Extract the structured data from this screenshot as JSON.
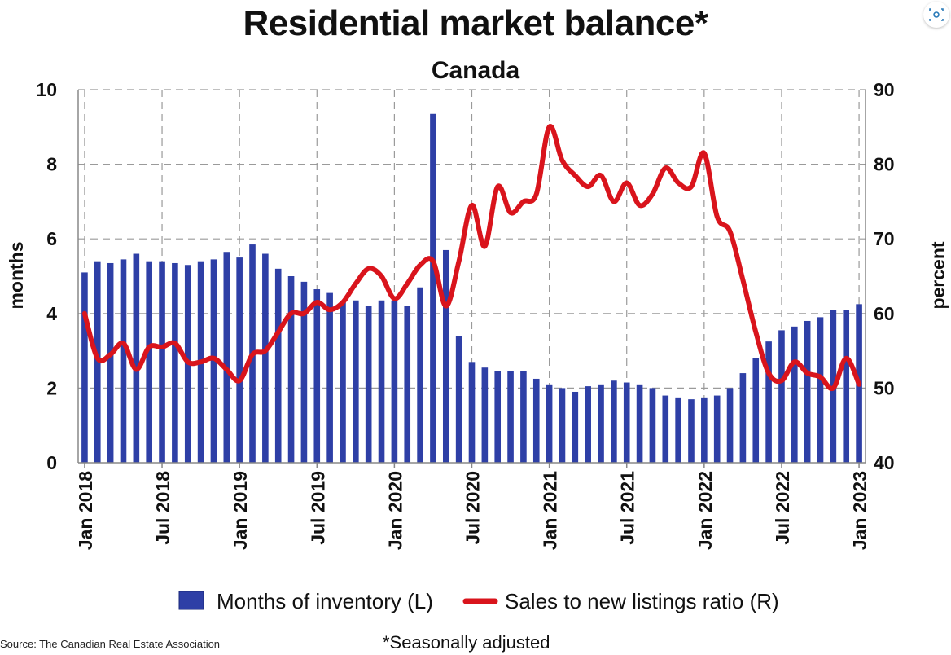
{
  "title": "Residential market balance*",
  "subtitle": "Canada",
  "source": "Source: The Canadian Real Estate Association",
  "footnote": "*Seasonally adjusted",
  "icons": {
    "corner": "lens-icon"
  },
  "colors": {
    "bar": "#2e3fa6",
    "line": "#d9141c",
    "grid": "#9a9a9a"
  },
  "chart_data": {
    "type": "bar+line",
    "title": "Residential market balance*",
    "subtitle": "Canada",
    "ylabel": "months",
    "y2label": "percent",
    "ylim": [
      0,
      10
    ],
    "y2lim": [
      40,
      90
    ],
    "yticks": [
      0,
      2,
      4,
      6,
      8,
      10
    ],
    "y2ticks": [
      40,
      50,
      60,
      70,
      80,
      90
    ],
    "grid": true,
    "legend_position": "bottom",
    "categories": [
      "Jan 2018",
      "Feb 2018",
      "Mar 2018",
      "Apr 2018",
      "May 2018",
      "Jun 2018",
      "Jul 2018",
      "Aug 2018",
      "Sep 2018",
      "Oct 2018",
      "Nov 2018",
      "Dec 2018",
      "Jan 2019",
      "Feb 2019",
      "Mar 2019",
      "Apr 2019",
      "May 2019",
      "Jun 2019",
      "Jul 2019",
      "Aug 2019",
      "Sep 2019",
      "Oct 2019",
      "Nov 2019",
      "Dec 2019",
      "Jan 2020",
      "Feb 2020",
      "Mar 2020",
      "Apr 2020",
      "May 2020",
      "Jun 2020",
      "Jul 2020",
      "Aug 2020",
      "Sep 2020",
      "Oct 2020",
      "Nov 2020",
      "Dec 2020",
      "Jan 2021",
      "Feb 2021",
      "Mar 2021",
      "Apr 2021",
      "May 2021",
      "Jun 2021",
      "Jul 2021",
      "Aug 2021",
      "Sep 2021",
      "Oct 2021",
      "Nov 2021",
      "Dec 2021",
      "Jan 2022",
      "Feb 2022",
      "Mar 2022",
      "Apr 2022",
      "May 2022",
      "Jun 2022",
      "Jul 2022",
      "Aug 2022",
      "Sep 2022",
      "Oct 2022",
      "Nov 2022",
      "Dec 2022",
      "Jan 2023"
    ],
    "xtick_labels": [
      "Jan 2018",
      "Jul 2018",
      "Jan 2019",
      "Jul 2019",
      "Jan 2020",
      "Jul 2020",
      "Jan 2021",
      "Jul 2021",
      "Jan 2022",
      "Jul 2022",
      "Jan 2023"
    ],
    "series": [
      {
        "name": "Months of inventory (L)",
        "type": "bar",
        "axis": "left",
        "values": [
          5.1,
          5.4,
          5.35,
          5.45,
          5.6,
          5.4,
          5.4,
          5.35,
          5.3,
          5.4,
          5.45,
          5.65,
          5.5,
          5.85,
          5.6,
          5.2,
          5.0,
          4.85,
          4.65,
          4.55,
          4.3,
          4.35,
          4.2,
          4.35,
          4.35,
          4.2,
          4.7,
          9.35,
          5.7,
          3.4,
          2.7,
          2.55,
          2.45,
          2.45,
          2.45,
          2.25,
          2.1,
          2.0,
          1.9,
          2.05,
          2.1,
          2.2,
          2.15,
          2.1,
          2.0,
          1.8,
          1.75,
          1.7,
          1.75,
          1.8,
          2.0,
          2.4,
          2.8,
          3.25,
          3.55,
          3.65,
          3.8,
          3.9,
          4.1,
          4.1,
          4.25
        ]
      },
      {
        "name": "Sales to new listings ratio (R)",
        "type": "line",
        "axis": "right",
        "values": [
          60,
          54,
          54.5,
          56,
          52.5,
          55.5,
          55.5,
          56,
          53.5,
          53.5,
          54,
          52.5,
          51,
          54.5,
          55,
          57.5,
          60,
          60,
          61.5,
          60.5,
          61.5,
          64,
          66,
          65,
          62,
          64,
          66.5,
          67,
          61,
          67,
          74.5,
          69,
          77,
          73.5,
          75,
          76,
          85,
          80.5,
          78.5,
          77,
          78.5,
          75,
          77.5,
          74.5,
          76,
          79.5,
          77.5,
          77,
          81.5,
          73,
          71,
          64.5,
          57.5,
          52,
          51,
          53.5,
          52,
          51.5,
          50,
          54,
          50.5
        ]
      }
    ]
  }
}
